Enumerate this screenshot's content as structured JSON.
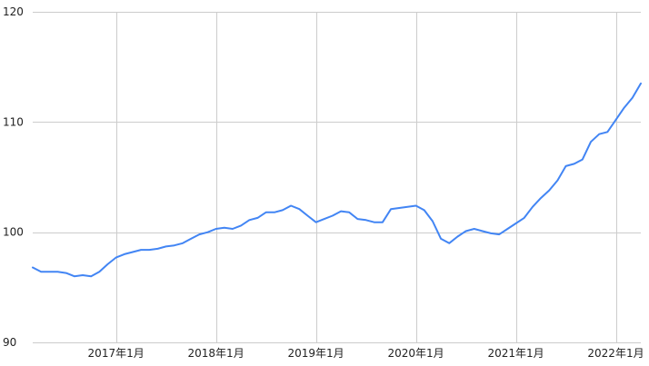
{
  "chart_data": {
    "type": "line",
    "title": "",
    "xlabel": "",
    "ylabel": "",
    "ylim": [
      90,
      120
    ],
    "yticks": [
      90,
      100,
      110,
      120
    ],
    "ytick_labels": [
      "90",
      "100",
      "110",
      "120"
    ],
    "xlim": [
      "2016-03",
      "2022-04"
    ],
    "xticks": [
      "2017-01",
      "2018-01",
      "2019-01",
      "2020-01",
      "2021-01",
      "2022-01"
    ],
    "xtick_labels": [
      "2017年1月",
      "2018年1月",
      "2019年1月",
      "2020年1月",
      "2021年1月",
      "2022年1月"
    ],
    "grid": true,
    "legend": "none",
    "colors": {
      "series": "#4285f4",
      "grid": "#cccccc",
      "text": "#222222"
    },
    "series": [
      {
        "x": [
          "2016-03",
          "2016-04",
          "2016-05",
          "2016-06",
          "2016-07",
          "2016-08",
          "2016-09",
          "2016-10",
          "2016-11",
          "2016-12",
          "2017-01",
          "2017-02",
          "2017-03",
          "2017-04",
          "2017-05",
          "2017-06",
          "2017-07",
          "2017-08",
          "2017-09",
          "2017-10",
          "2017-11",
          "2017-12",
          "2018-01",
          "2018-02",
          "2018-03",
          "2018-04",
          "2018-05",
          "2018-06",
          "2018-07",
          "2018-08",
          "2018-09",
          "2018-10",
          "2018-11",
          "2018-12",
          "2019-01",
          "2019-02",
          "2019-03",
          "2019-04",
          "2019-05",
          "2019-06",
          "2019-07",
          "2019-08",
          "2019-09",
          "2019-10",
          "2019-11",
          "2019-12",
          "2020-01",
          "2020-02",
          "2020-03",
          "2020-04",
          "2020-05",
          "2020-06",
          "2020-07",
          "2020-08",
          "2020-09",
          "2020-10",
          "2020-11",
          "2020-12",
          "2021-01",
          "2021-02",
          "2021-03",
          "2021-04",
          "2021-05",
          "2021-06",
          "2021-07",
          "2021-08",
          "2021-09",
          "2021-10",
          "2021-11",
          "2021-12",
          "2022-01",
          "2022-02",
          "2022-03",
          "2022-04"
        ],
        "values": [
          96.8,
          96.4,
          96.4,
          96.4,
          96.3,
          96.0,
          96.1,
          96.0,
          96.4,
          97.1,
          97.7,
          98.0,
          98.2,
          98.4,
          98.4,
          98.5,
          98.7,
          98.8,
          99.0,
          99.4,
          99.8,
          100.0,
          100.3,
          100.4,
          100.3,
          100.6,
          101.1,
          101.3,
          101.8,
          101.8,
          102.0,
          102.4,
          102.1,
          101.5,
          100.9,
          101.2,
          101.5,
          101.9,
          101.8,
          101.2,
          101.1,
          100.9,
          100.9,
          102.1,
          102.2,
          102.3,
          102.4,
          102.0,
          101.0,
          99.4,
          99.0,
          99.6,
          100.1,
          100.3,
          100.1,
          99.9,
          99.8,
          100.3,
          100.8,
          101.3,
          102.3,
          103.1,
          103.8,
          104.7,
          106.0,
          106.2,
          106.6,
          108.2,
          108.9,
          109.1,
          110.2,
          111.3,
          112.2,
          113.5
        ]
      }
    ]
  }
}
